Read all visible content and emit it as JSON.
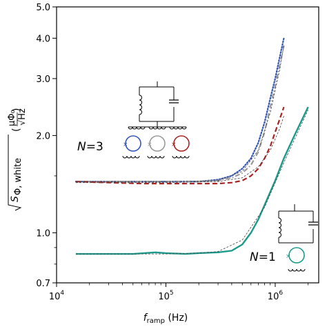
{
  "chart_data": {
    "type": "line",
    "xscale": "log",
    "yscale": "log",
    "xlim": [
      10000,
      2500000
    ],
    "ylim": [
      0.7,
      5.0
    ],
    "x_ticks": [
      10000,
      100000,
      1000000
    ],
    "x_tick_labels": [
      {
        "base": "10",
        "exp": "4"
      },
      {
        "base": "10",
        "exp": "5"
      },
      {
        "base": "10",
        "exp": "6"
      }
    ],
    "y_ticks": [
      0.7,
      1.0,
      2.0,
      3.0,
      4.0,
      5.0
    ],
    "y_tick_labels": [
      "0.7",
      "1.0",
      "2.0",
      "3.0",
      "4.0",
      "5.0"
    ],
    "xlabel": {
      "main": "f",
      "sub": "ramp",
      "unit": " (Hz)"
    },
    "ylabel": {
      "sub": "Φ, white",
      "unit_num": "μΦ₀",
      "unit_den": "√Hz"
    },
    "grid": false,
    "legend": "none",
    "annotations": [
      {
        "text": "N=3",
        "italic": "N",
        "rest": "=3"
      },
      {
        "text": "N=1",
        "italic": "N",
        "rest": "=1"
      }
    ],
    "series": [
      {
        "color": "#3355bb",
        "style": "dotted",
        "x": [
          15000,
          30000,
          60000,
          100000,
          200000,
          300000,
          400000,
          500000,
          600000,
          700000,
          800000,
          900000,
          1000000,
          1100000,
          1200000
        ],
        "y": [
          1.44,
          1.44,
          1.44,
          1.44,
          1.44,
          1.46,
          1.5,
          1.58,
          1.7,
          1.9,
          2.2,
          2.6,
          3.0,
          3.5,
          4.0
        ]
      },
      {
        "color": "#999999",
        "style": "dashdot",
        "x": [
          15000,
          30000,
          60000,
          100000,
          200000,
          300000,
          400000,
          500000,
          600000,
          700000,
          800000,
          900000,
          1000000,
          1100000,
          1200000
        ],
        "y": [
          1.44,
          1.44,
          1.44,
          1.44,
          1.44,
          1.45,
          1.48,
          1.53,
          1.62,
          1.78,
          2.05,
          2.45,
          2.85,
          3.3,
          3.8
        ]
      },
      {
        "color": "#aa2222",
        "style": "dashed",
        "x": [
          15000,
          30000,
          60000,
          100000,
          200000,
          300000,
          400000,
          500000,
          600000,
          700000,
          800000,
          900000,
          1000000,
          1100000,
          1200000
        ],
        "y": [
          1.44,
          1.43,
          1.42,
          1.42,
          1.42,
          1.42,
          1.43,
          1.45,
          1.5,
          1.58,
          1.7,
          1.85,
          2.05,
          2.25,
          2.45
        ]
      },
      {
        "color": "#1a9a8a",
        "style": "solid",
        "x": [
          15000,
          20000,
          30000,
          50000,
          80000,
          100000,
          150000,
          200000,
          300000,
          400000,
          500000,
          600000,
          700000,
          800000,
          1000000,
          1200000,
          1500000,
          2000000
        ],
        "y": [
          0.86,
          0.86,
          0.86,
          0.86,
          0.87,
          0.865,
          0.86,
          0.865,
          0.87,
          0.88,
          0.92,
          1.0,
          1.1,
          1.22,
          1.45,
          1.7,
          2.0,
          2.45
        ]
      }
    ],
    "fit_curves": [
      {
        "color": "#444444",
        "x": [
          15000,
          100000,
          300000,
          500000,
          700000,
          900000,
          1100000,
          1200000
        ],
        "y": [
          1.44,
          1.44,
          1.45,
          1.55,
          1.8,
          2.35,
          3.2,
          3.8
        ]
      },
      {
        "color": "#444444",
        "x": [
          15000,
          100000,
          300000,
          500000,
          700000,
          900000,
          1100000,
          1200000
        ],
        "y": [
          1.43,
          1.43,
          1.44,
          1.48,
          1.6,
          1.8,
          2.1,
          2.3
        ]
      },
      {
        "color": "#444444",
        "x": [
          15000,
          100000,
          200000,
          300000,
          500000,
          800000,
          1200000,
          2000000
        ],
        "y": [
          0.86,
          0.86,
          0.865,
          0.875,
          0.95,
          1.2,
          1.65,
          2.4
        ]
      }
    ]
  },
  "colors": {
    "blue": "#3355bb",
    "grey": "#999999",
    "red": "#aa2222",
    "teal": "#1a9a8a"
  }
}
